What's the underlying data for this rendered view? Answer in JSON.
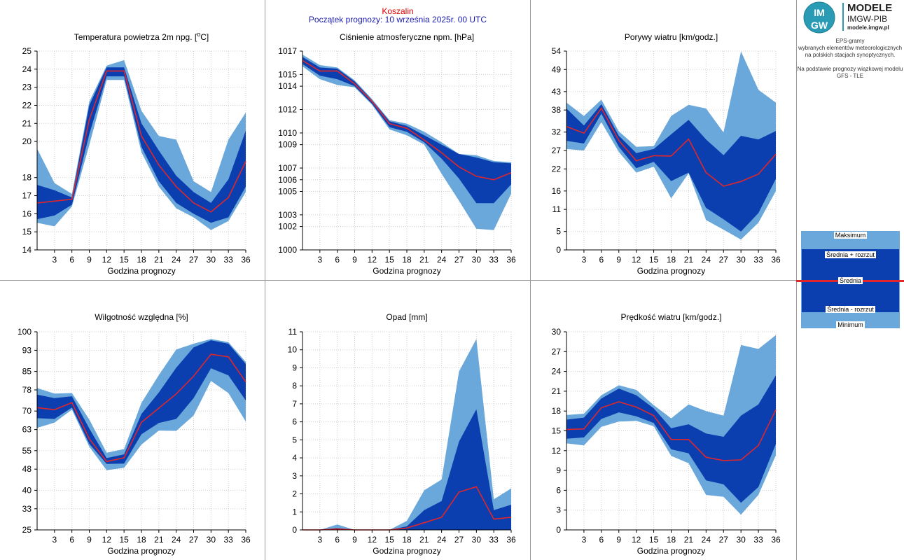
{
  "header": {
    "city": "Koszalin",
    "forecast_start": "Początek prognozy: 10 września 2025r. 00 UTC"
  },
  "sidebar": {
    "logo_line1": "MODELE",
    "logo_line2": "IMGW-PIB",
    "logo_url": "modele.imgw.pl",
    "logo_badge_top": "IM",
    "logo_badge_bottom": "GW",
    "desc1": "EPS-gramy",
    "desc2": "wybranych elementów meteorologicznych",
    "desc3": "na polskich stacjach  synoptycznych.",
    "desc4": "Na podstawie prognozy wiązkowej modelu",
    "desc5": "GFS - TLE"
  },
  "legend": {
    "max": "Maksimum",
    "mean_plus": "Średnia + rozrzut",
    "mean": "Średnia",
    "mean_minus": "Średnia - rozrzut",
    "min": "Minimum",
    "colors": {
      "outer": "#6aa7da",
      "inner": "#0b3fb0",
      "mean": "#e0262b"
    }
  },
  "chart_data": [
    {
      "id": "temp",
      "type": "area",
      "title": "Temperatura powietrza 2m npg. [°C]",
      "title_main": "Temperatura powietrza 2m npg. [",
      "title_sup": "o",
      "title_end": "C]",
      "xlabel": "Godzina prognozy",
      "x": [
        0,
        3,
        6,
        9,
        12,
        15,
        18,
        21,
        24,
        27,
        30,
        33,
        36
      ],
      "xticks": [
        3,
        6,
        9,
        12,
        15,
        18,
        21,
        24,
        27,
        30,
        33,
        36
      ],
      "ylim": [
        14,
        25
      ],
      "yticks": [
        "14",
        "15",
        "16",
        "17",
        "18",
        "20",
        "21",
        "22",
        "23",
        "24",
        "25"
      ],
      "series": [
        {
          "role": "max",
          "values": [
            19.6,
            17.7,
            17.1,
            22.2,
            24.2,
            24.5,
            21.7,
            20.3,
            20.1,
            17.8,
            17.2,
            20.1,
            21.6
          ]
        },
        {
          "role": "mean_plus",
          "values": [
            17.6,
            17.3,
            16.9,
            22.0,
            24.1,
            24.1,
            21.0,
            19.5,
            18.1,
            17.2,
            16.6,
            17.9,
            20.6
          ]
        },
        {
          "role": "mean",
          "values": [
            16.6,
            16.7,
            16.8,
            21.2,
            23.9,
            23.9,
            20.3,
            18.7,
            17.5,
            16.6,
            16.1,
            16.9,
            18.9
          ]
        },
        {
          "role": "mean_minus",
          "values": [
            15.7,
            15.9,
            16.5,
            20.4,
            23.6,
            23.6,
            19.7,
            17.8,
            16.6,
            16.0,
            15.5,
            15.8,
            17.5
          ]
        },
        {
          "role": "min",
          "values": [
            15.5,
            15.3,
            16.4,
            19.8,
            23.4,
            23.4,
            19.4,
            17.5,
            16.3,
            15.8,
            15.1,
            15.6,
            17.2
          ]
        }
      ]
    },
    {
      "id": "press",
      "type": "area",
      "title": "Ciśnienie atmosferyczne npm. [hPa]",
      "xlabel": "Godzina prognozy",
      "x": [
        0,
        3,
        6,
        9,
        12,
        15,
        18,
        21,
        24,
        27,
        30,
        33,
        36
      ],
      "xticks": [
        3,
        6,
        9,
        12,
        15,
        18,
        21,
        24,
        27,
        30,
        33,
        36
      ],
      "ylim": [
        1000,
        1017
      ],
      "yticks": [
        "1000",
        "1002",
        "1003",
        "1005",
        "1006",
        "1007",
        "1009",
        "1010",
        "1012",
        "1014",
        "1015",
        "1017"
      ],
      "series": [
        {
          "role": "max",
          "values": [
            1016.7,
            1015.8,
            1015.6,
            1014.5,
            1012.9,
            1011.1,
            1010.8,
            1010.1,
            1009.2,
            1008.2,
            1008.1,
            1007.6,
            1007.5
          ]
        },
        {
          "role": "mean_plus",
          "values": [
            1016.5,
            1015.6,
            1015.5,
            1014.4,
            1012.8,
            1011.0,
            1010.6,
            1009.8,
            1009.0,
            1008.2,
            1007.9,
            1007.5,
            1007.4
          ]
        },
        {
          "role": "mean",
          "values": [
            1016.2,
            1015.3,
            1015.3,
            1014.2,
            1012.7,
            1010.8,
            1010.4,
            1009.4,
            1008.3,
            1007.1,
            1006.3,
            1006.0,
            1006.6
          ]
        },
        {
          "role": "mean_minus",
          "values": [
            1015.9,
            1014.9,
            1014.6,
            1014.0,
            1012.5,
            1010.5,
            1010.1,
            1009.2,
            1007.8,
            1006.1,
            1004.0,
            1004.0,
            1005.6
          ]
        },
        {
          "role": "min",
          "values": [
            1015.7,
            1014.6,
            1014.1,
            1013.9,
            1012.4,
            1010.3,
            1009.8,
            1009.0,
            1006.5,
            1004.2,
            1001.8,
            1001.7,
            1004.8
          ]
        }
      ]
    },
    {
      "id": "gust",
      "type": "area",
      "title": "Porywy wiatru [km/godz.]",
      "xlabel": "Godzina prognozy",
      "x": [
        0,
        3,
        6,
        9,
        12,
        15,
        18,
        21,
        24,
        27,
        30,
        33,
        36
      ],
      "xticks": [
        3,
        6,
        9,
        12,
        15,
        18,
        21,
        24,
        27,
        30,
        33,
        36
      ],
      "ylim": [
        0,
        54
      ],
      "yticks": [
        "0",
        "5",
        "11",
        "16",
        "22",
        "27",
        "32",
        "38",
        "43",
        "49",
        "54"
      ],
      "series": [
        {
          "role": "max",
          "values": [
            40.0,
            36.4,
            40.8,
            32.2,
            28.0,
            28.2,
            36.4,
            39.4,
            38.4,
            31.9,
            53.9,
            43.5,
            40.0
          ]
        },
        {
          "role": "mean_plus",
          "values": [
            38.4,
            33.8,
            39.6,
            31.0,
            26.3,
            27.4,
            31.4,
            35.3,
            30.0,
            25.7,
            31.0,
            30.0,
            32.3
          ]
        },
        {
          "role": "mean",
          "values": [
            33.5,
            31.7,
            38.5,
            29.7,
            24.2,
            25.6,
            25.5,
            30.1,
            21.0,
            17.3,
            18.6,
            20.6,
            26.0
          ]
        },
        {
          "role": "mean_minus",
          "values": [
            29.6,
            28.9,
            37.0,
            28.0,
            22.2,
            23.9,
            18.7,
            21.0,
            11.4,
            8.3,
            5.0,
            10.0,
            19.3
          ]
        },
        {
          "role": "min",
          "values": [
            27.4,
            27.0,
            34.7,
            26.6,
            21.0,
            22.6,
            14.0,
            20.8,
            8.1,
            5.5,
            2.8,
            7.4,
            16.0
          ]
        }
      ]
    },
    {
      "id": "hum",
      "type": "area",
      "title": "Wilgotność względna [%]",
      "xlabel": "Godzina prognozy",
      "x": [
        0,
        3,
        6,
        9,
        12,
        15,
        18,
        21,
        24,
        27,
        30,
        33,
        36
      ],
      "xticks": [
        3,
        6,
        9,
        12,
        15,
        18,
        21,
        24,
        27,
        30,
        33,
        36
      ],
      "ylim": [
        25,
        100
      ],
      "yticks": [
        "25",
        "33",
        "40",
        "48",
        "55",
        "63",
        "70",
        "78",
        "85",
        "93",
        "100"
      ],
      "series": [
        {
          "role": "max",
          "values": [
            78.7,
            76.6,
            76.8,
            66.8,
            54.2,
            55.6,
            73.1,
            83.6,
            93.3,
            95.5,
            97.3,
            96.1,
            88.6
          ]
        },
        {
          "role": "mean_plus",
          "values": [
            76.2,
            74.9,
            75.6,
            63.4,
            52.2,
            53.6,
            68.9,
            77.0,
            86.4,
            94.1,
            96.8,
            95.5,
            87.8
          ]
        },
        {
          "role": "mean",
          "values": [
            71.3,
            70.5,
            73.2,
            59.5,
            50.9,
            52.3,
            65.7,
            71.1,
            76.5,
            83.2,
            91.5,
            90.5,
            81.0
          ]
        },
        {
          "role": "mean_minus",
          "values": [
            67.3,
            67.0,
            71.3,
            57.6,
            50.0,
            50.1,
            61.2,
            65.5,
            67.0,
            74.9,
            86.2,
            83.5,
            74.0
          ]
        },
        {
          "role": "min",
          "values": [
            63.6,
            65.6,
            70.5,
            56.5,
            47.6,
            48.5,
            57.3,
            62.6,
            62.5,
            68.3,
            81.4,
            76.8,
            66.0
          ]
        }
      ]
    },
    {
      "id": "precip",
      "type": "area",
      "title": "Opad [mm]",
      "xlabel": "Godzina prognozy",
      "x": [
        0,
        3,
        6,
        9,
        12,
        15,
        18,
        21,
        24,
        27,
        30,
        33,
        36
      ],
      "xticks": [
        3,
        6,
        9,
        12,
        15,
        18,
        21,
        24,
        27,
        30,
        33,
        36
      ],
      "ylim": [
        0,
        11
      ],
      "yticks": [
        "0",
        "1",
        "2",
        "3",
        "4",
        "5",
        "6",
        "7",
        "8",
        "9",
        "10",
        "11"
      ],
      "series": [
        {
          "role": "max",
          "values": [
            0,
            0,
            0.3,
            0,
            0,
            0,
            0.5,
            2.2,
            2.8,
            8.8,
            10.6,
            1.7,
            2.3
          ]
        },
        {
          "role": "mean_plus",
          "values": [
            0,
            0,
            0.1,
            0,
            0,
            0,
            0.2,
            1.1,
            1.6,
            4.9,
            6.7,
            1.1,
            1.4
          ]
        },
        {
          "role": "mean",
          "values": [
            0,
            0,
            0.05,
            0,
            0,
            0,
            0.1,
            0.4,
            0.7,
            2.1,
            2.4,
            0.6,
            0.7
          ]
        },
        {
          "role": "mean_minus",
          "values": [
            0,
            0,
            0,
            0,
            0,
            0,
            0,
            0,
            0,
            0,
            0,
            0,
            0
          ]
        },
        {
          "role": "min",
          "values": [
            0,
            0,
            0,
            0,
            0,
            0,
            0,
            0,
            0,
            0,
            0,
            0,
            0
          ]
        }
      ]
    },
    {
      "id": "wind",
      "type": "area",
      "title": "Prędkość wiatru [km/godz.]",
      "xlabel": "Godzina prognozy",
      "x": [
        0,
        3,
        6,
        9,
        12,
        15,
        18,
        21,
        24,
        27,
        30,
        33,
        36
      ],
      "xticks": [
        3,
        6,
        9,
        12,
        15,
        18,
        21,
        24,
        27,
        30,
        33,
        36
      ],
      "ylim": [
        0,
        30
      ],
      "yticks": [
        "0",
        "3",
        "6",
        "9",
        "12",
        "15",
        "18",
        "21",
        "24",
        "27",
        "30"
      ],
      "series": [
        {
          "role": "max",
          "values": [
            17.4,
            17.6,
            20.4,
            21.9,
            21.2,
            18.9,
            16.9,
            19.0,
            18.0,
            17.3,
            28.0,
            27.4,
            29.5
          ]
        },
        {
          "role": "mean_plus",
          "values": [
            16.7,
            17.0,
            19.9,
            21.4,
            20.4,
            18.4,
            15.4,
            16.0,
            14.6,
            14.1,
            17.3,
            19.0,
            23.4
          ]
        },
        {
          "role": "mean",
          "values": [
            15.2,
            15.3,
            18.5,
            19.4,
            18.6,
            17.3,
            13.7,
            13.7,
            11.0,
            10.5,
            10.6,
            12.8,
            18.2
          ]
        },
        {
          "role": "mean_minus",
          "values": [
            13.8,
            14.0,
            16.8,
            17.8,
            17.2,
            16.2,
            12.2,
            11.6,
            7.5,
            6.9,
            4.1,
            6.5,
            13.0
          ]
        },
        {
          "role": "min",
          "values": [
            13.1,
            12.8,
            15.6,
            16.4,
            16.5,
            15.7,
            11.2,
            10.1,
            5.3,
            5.0,
            2.3,
            5.3,
            11.3
          ]
        }
      ]
    }
  ]
}
